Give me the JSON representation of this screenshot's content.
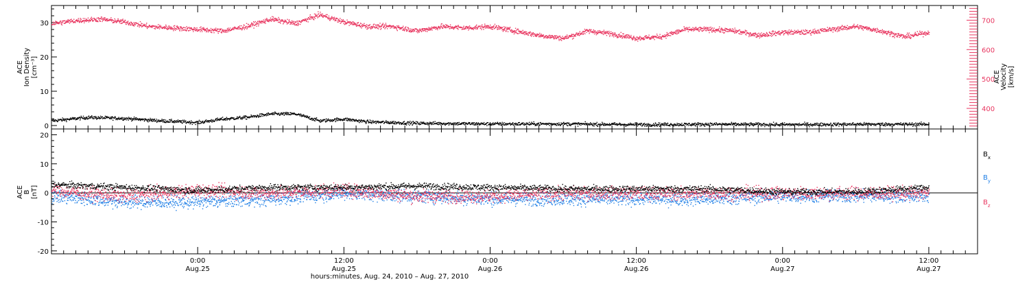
{
  "colors": {
    "black": "#000000",
    "red": "#e8355f",
    "blue": "#1f7fe6"
  },
  "chart_data": [
    {
      "type": "scatter",
      "panel": "top",
      "left_axis": {
        "label_lines": [
          "ACE",
          "Ion Density",
          "[cm⁻³]"
        ],
        "ylim": [
          -1,
          35
        ],
        "ticks": [
          0,
          10,
          20,
          30
        ]
      },
      "right_axis": {
        "label_lines": [
          "ACE",
          "Velocity",
          "[km/s]"
        ],
        "ylim": [
          330,
          750
        ],
        "ticks": [
          400,
          500,
          600,
          700
        ]
      },
      "xlim_hours": [
        0,
        76
      ],
      "series": [
        {
          "axis": "left",
          "color": "black",
          "knots_hours": [
            0,
            3,
            6,
            9,
            12,
            14,
            16,
            18,
            20,
            22,
            24,
            26,
            28,
            30,
            36,
            42,
            48,
            54,
            60,
            66,
            72
          ],
          "knots_values": [
            1.5,
            2.5,
            2.2,
            1.5,
            1.0,
            2.0,
            2.5,
            3.5,
            3.5,
            1.5,
            2.0,
            1.2,
            1.0,
            0.8,
            0.6,
            0.6,
            0.4,
            0.5,
            0.4,
            0.5,
            0.5
          ]
        },
        {
          "axis": "right",
          "color": "red",
          "knots_hours": [
            0,
            2,
            4,
            6,
            8,
            10,
            12,
            14,
            16,
            18,
            20,
            22,
            24,
            26,
            28,
            30,
            32,
            34,
            36,
            38,
            40,
            42,
            44,
            46,
            48,
            50,
            52,
            54,
            56,
            58,
            60,
            62,
            64,
            66,
            68,
            70,
            72
          ],
          "knots_values": [
            690,
            700,
            705,
            695,
            680,
            675,
            670,
            665,
            680,
            705,
            690,
            720,
            695,
            680,
            680,
            665,
            680,
            675,
            680,
            665,
            650,
            640,
            665,
            655,
            640,
            645,
            670,
            670,
            665,
            650,
            660,
            660,
            670,
            680,
            665,
            645,
            660
          ]
        }
      ]
    },
    {
      "type": "scatter",
      "panel": "bottom",
      "left_axis": {
        "label_lines": [
          "ACE",
          "B",
          "[nT]"
        ],
        "ylim": [
          -21,
          22
        ],
        "ticks": [
          -20,
          -10,
          0,
          10,
          20
        ]
      },
      "xlim_hours": [
        0,
        76
      ],
      "zero_line": true,
      "legend": [
        {
          "base": "B",
          "sub": "x",
          "color": "black"
        },
        {
          "base": "B",
          "sub": "y",
          "color": "blue"
        },
        {
          "base": "B",
          "sub": "z",
          "color": "red"
        }
      ],
      "series": [
        {
          "name": "Bx",
          "color": "black",
          "knots_hours": [
            0,
            6,
            12,
            18,
            24,
            30,
            36,
            42,
            48,
            54,
            60,
            66,
            72
          ],
          "knots_values": [
            3,
            2,
            1,
            2,
            2,
            2.5,
            2,
            1.5,
            1.5,
            1.5,
            0.5,
            0.5,
            2
          ]
        },
        {
          "name": "By",
          "color": "blue",
          "knots_hours": [
            0,
            6,
            12,
            18,
            24,
            30,
            36,
            42,
            48,
            54,
            60,
            66,
            72
          ],
          "knots_values": [
            -1,
            -3,
            -3,
            -2,
            0,
            -1,
            -2,
            -2,
            -2,
            -2,
            -1,
            -1,
            -1
          ]
        },
        {
          "name": "Bz",
          "color": "red",
          "knots_hours": [
            0,
            6,
            12,
            18,
            24,
            30,
            36,
            42,
            48,
            54,
            60,
            66,
            72
          ],
          "knots_values": [
            1,
            -1,
            1,
            0,
            1,
            -1,
            -1,
            0,
            0,
            0,
            0,
            0,
            0
          ]
        }
      ]
    }
  ],
  "x_axis": {
    "major_ticks": [
      {
        "hour": 12,
        "time": "0:00",
        "date": "Aug.25"
      },
      {
        "hour": 24,
        "time": "12:00",
        "date": "Aug.25"
      },
      {
        "hour": 36,
        "time": "0:00",
        "date": "Aug.26"
      },
      {
        "hour": 48,
        "time": "12:00",
        "date": "Aug.26"
      },
      {
        "hour": 60,
        "time": "0:00",
        "date": "Aug.27"
      },
      {
        "hour": 72,
        "time": "12:00",
        "date": "Aug.27"
      }
    ],
    "title": "hours:minutes, Aug. 24, 2010 – Aug. 27, 2010"
  }
}
